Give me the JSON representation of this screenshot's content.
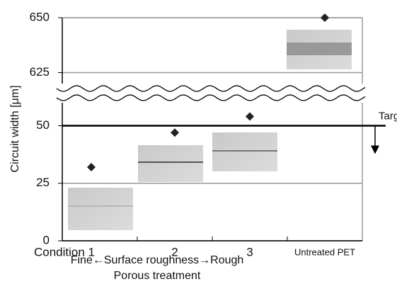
{
  "chart_data": {
    "type": "dot",
    "ylabel": "Circuit width [μm]",
    "categories": [
      "Condition 1",
      "2",
      "3",
      "Untreated PET"
    ],
    "values": [
      32,
      47,
      54,
      650
    ],
    "color": "#222222",
    "panels": [
      {
        "ylim": [
          0,
          60
        ],
        "yticks": [
          0,
          25,
          50
        ]
      },
      {
        "ylim": [
          620,
          650
        ],
        "yticks": [
          625,
          650
        ]
      }
    ],
    "target": {
      "value": 50,
      "label": "Target"
    },
    "xlabel": [
      "Fine←Surface roughness→Rough",
      "Porous treatment"
    ],
    "grid": true
  }
}
